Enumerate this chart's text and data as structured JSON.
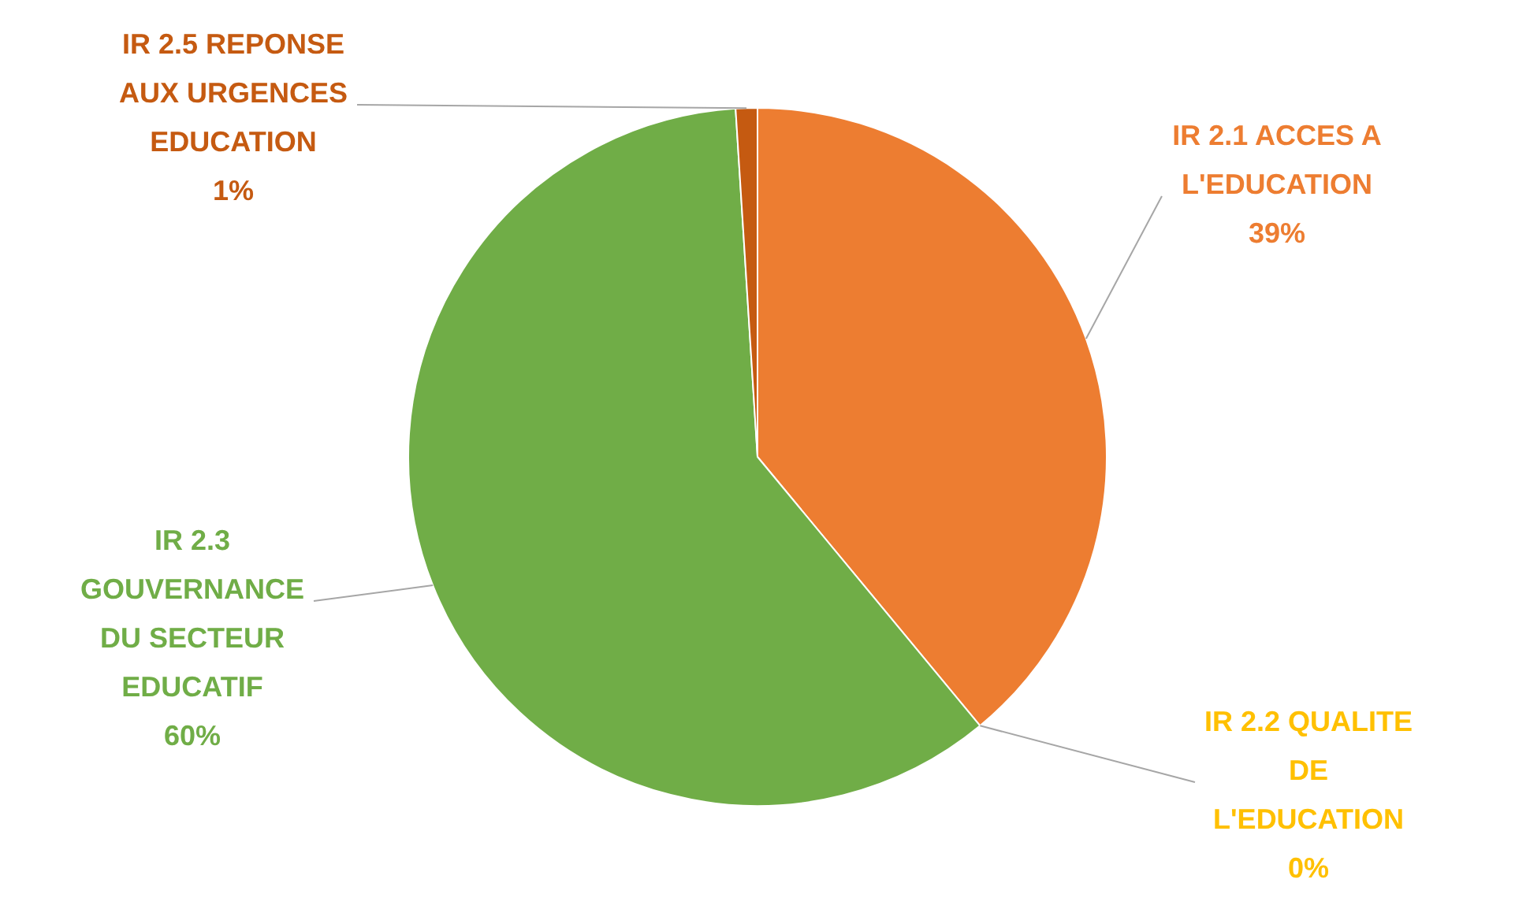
{
  "chart_data": {
    "type": "pie",
    "categories": [
      "IR 2.1 ACCES A L'EDUCATION",
      "IR 2.2 QUALITE DE L'EDUCATION",
      "IR 2.3 GOUVERNANCE DU SECTEUR EDUCATIF",
      "IR 2.5 REPONSE AUX URGENCES EDUCATION"
    ],
    "values": [
      39,
      0,
      60,
      1
    ],
    "value_labels": [
      "39%",
      "0%",
      "60%",
      "1%"
    ],
    "colors": [
      "#ed7d31",
      "#ffc000",
      "#70ad47",
      "#c55a11"
    ]
  }
}
